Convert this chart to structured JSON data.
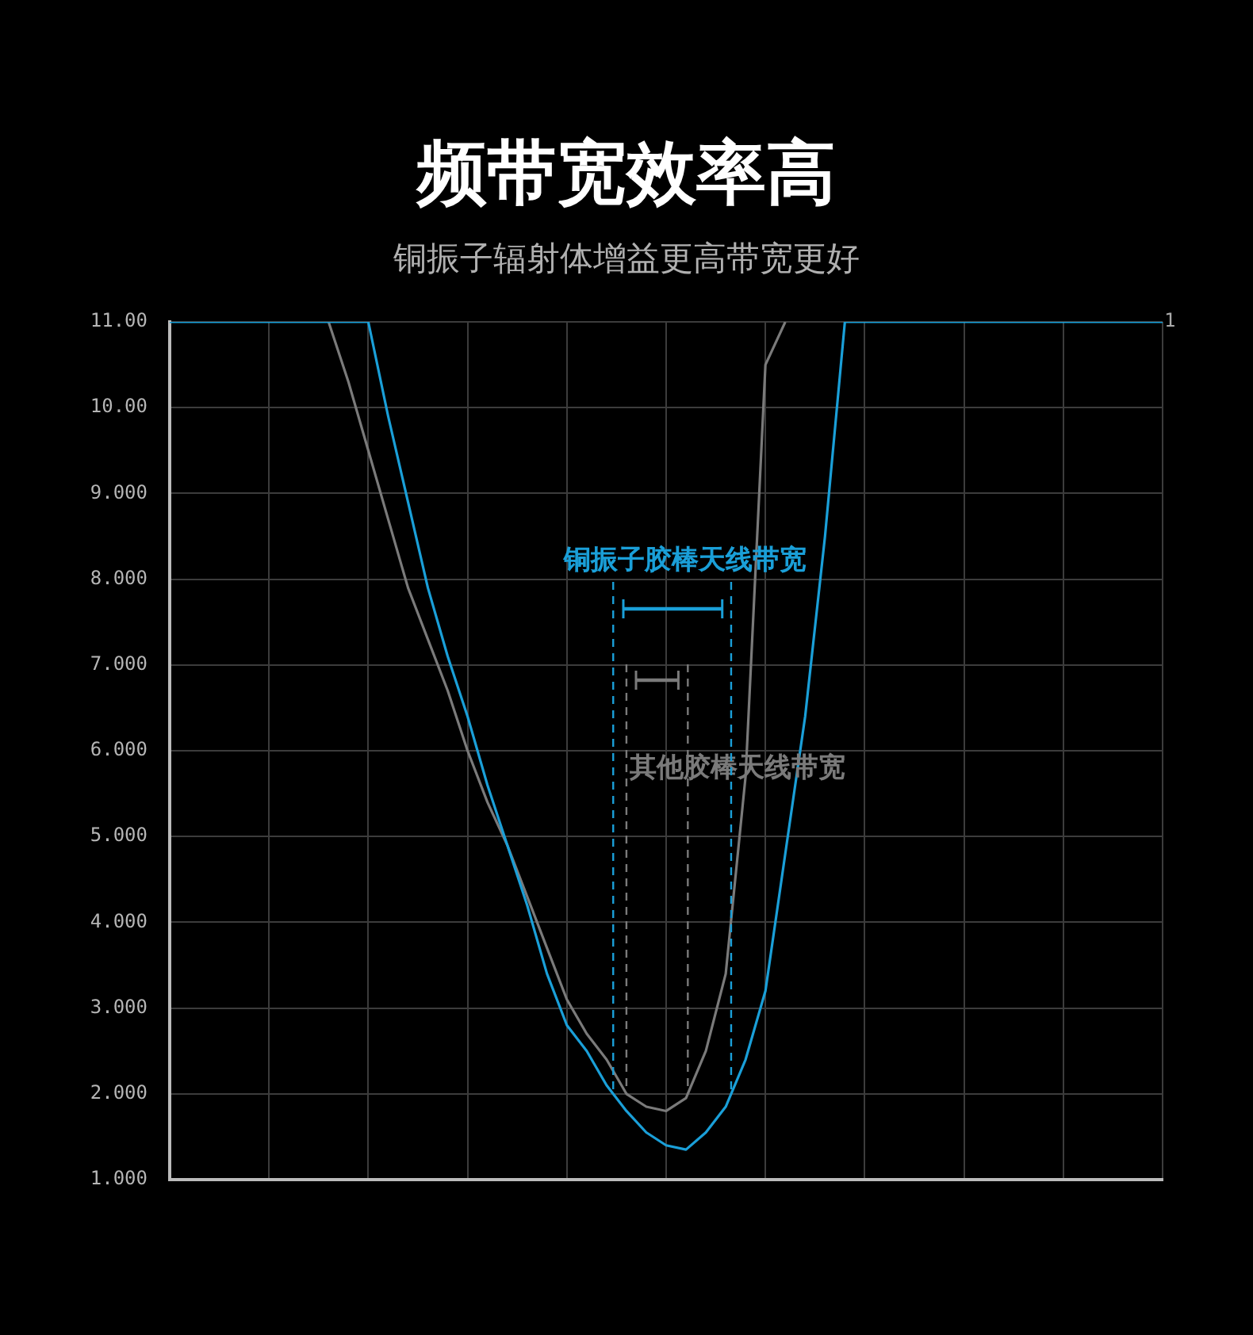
{
  "chart_data": {
    "type": "line",
    "title": "频带宽效率高",
    "subtitle": "铜振子辐射体增益更高带宽更好",
    "categories": [
      null,
      null,
      null,
      null,
      null,
      null,
      null,
      null,
      null,
      null,
      null,
      null,
      null,
      null,
      null,
      null,
      null,
      null,
      null,
      null,
      null,
      null,
      null,
      null,
      null,
      null,
      null,
      null,
      null,
      null,
      null,
      null,
      null,
      null,
      null,
      null,
      null,
      null,
      null,
      null,
      null,
      null,
      null,
      null,
      null,
      null,
      null,
      null,
      null,
      null,
      null
    ],
    "ylim": [
      1,
      11
    ],
    "yticks": [
      {
        "value": 1,
        "label": "1.000"
      },
      {
        "value": 2,
        "label": "2.000"
      },
      {
        "value": 3,
        "label": "3.000"
      },
      {
        "value": 4,
        "label": "4.000"
      },
      {
        "value": 5,
        "label": "5.000"
      },
      {
        "value": 6,
        "label": "6.000"
      },
      {
        "value": 7,
        "label": "7.000"
      },
      {
        "value": 8,
        "label": "8.000"
      },
      {
        "value": 9,
        "label": "9.000"
      },
      {
        "value": 10,
        "label": "10.00"
      },
      {
        "value": 11,
        "label": "11.00"
      }
    ],
    "tick_labels": "y",
    "grid": true,
    "legend": false,
    "marker": "none",
    "line_style": "solid",
    "series": [
      {
        "color": "#7a7a7a",
        "values": [
          null,
          null,
          null,
          null,
          null,
          null,
          null,
          null,
          11,
          10.3,
          9.5,
          8.7,
          7.9,
          7.3,
          6.7,
          6.0,
          5.4,
          4.9,
          4.3,
          3.7,
          3.1,
          2.7,
          2.4,
          2.0,
          1.85,
          1.8,
          1.95,
          2.5,
          3.4,
          5.7,
          10.5,
          11,
          null,
          null,
          null,
          null,
          null,
          null,
          null,
          null,
          null,
          null,
          null,
          null,
          null,
          null,
          null,
          null,
          null,
          null,
          null
        ]
      },
      {
        "color": "#1a9fd8",
        "values": [
          11,
          11,
          11,
          11,
          11,
          11,
          11,
          11,
          11,
          11,
          11,
          9.9,
          8.9,
          7.9,
          7.1,
          6.4,
          5.6,
          4.9,
          4.2,
          3.4,
          2.8,
          2.5,
          2.1,
          1.8,
          1.55,
          1.4,
          1.35,
          1.55,
          1.85,
          2.4,
          3.2,
          4.8,
          6.4,
          8.5,
          11,
          11,
          11,
          11,
          11,
          11,
          11,
          11,
          11,
          11,
          11,
          11,
          11,
          11,
          11,
          11,
          11
        ]
      }
    ],
    "annotations": [
      "1",
      "铜振子胶棒天线带宽",
      "其他胶棒天线带宽"
    ]
  }
}
